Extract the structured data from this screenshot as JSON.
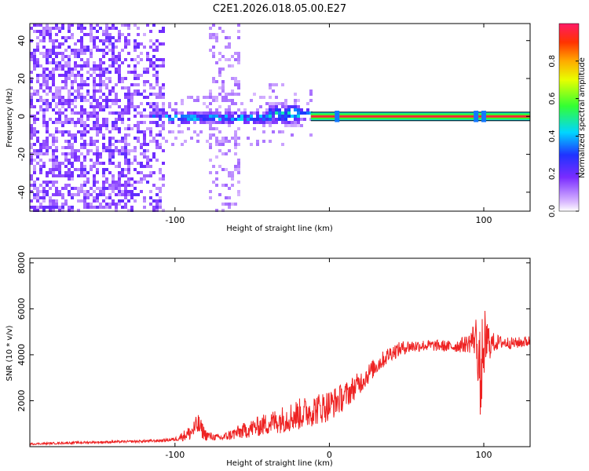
{
  "title": "C2E1.2026.018.05.00.E27",
  "chart_data": [
    {
      "type": "heatmap",
      "name": "spectrogram",
      "xlabel": "Height of straight line (km)",
      "ylabel": "Frequency (Hz)",
      "xlim": [
        -194,
        130
      ],
      "ylim": [
        -50,
        49
      ],
      "xticks": [
        -100,
        0,
        100
      ],
      "xtick_labels": [
        "-100",
        "",
        "100"
      ],
      "yticks": [
        -40,
        -20,
        0,
        20,
        40
      ],
      "ytick_labels": [
        "-40",
        "-20",
        "0",
        "20",
        "40"
      ],
      "colorbar": {
        "label": "Normalized spectral amplitude",
        "range": [
          0,
          1
        ],
        "ticks": [
          0.0,
          0.2,
          0.4,
          0.6,
          0.8
        ],
        "tick_labels": [
          "0.0",
          "0.2",
          "0.4",
          "0.6",
          "0.8"
        ]
      },
      "features": {
        "noise_region_km": [
          -194,
          -108
        ],
        "noise_patch_km": [
          -80,
          -58
        ],
        "broadband_region_km": [
          -118,
          -12
        ],
        "tone_frequency_hz": 0,
        "tone_band_hz": [
          -1,
          1
        ],
        "tone_start_km": -12,
        "tone_end_km": 130,
        "spur_km": [
          5,
          95,
          100
        ]
      }
    },
    {
      "type": "line",
      "name": "snr",
      "xlabel": "Height of straight line (km)",
      "ylabel": "SNR (10 * v/v)",
      "xlim": [
        -194,
        130
      ],
      "ylim": [
        0,
        8200
      ],
      "xticks": [
        -100,
        0,
        100
      ],
      "xtick_labels": [
        "-100",
        "0",
        "100"
      ],
      "yticks": [
        2000,
        4000,
        6000,
        8000
      ],
      "ytick_labels": [
        "2000",
        "4000",
        "6000",
        "8000"
      ],
      "series": [
        {
          "name": "SNR",
          "color": "#ee2222",
          "x": [
            -194,
            -160,
            -130,
            -110,
            -100,
            -90,
            -85,
            -80,
            -75,
            -70,
            -60,
            -50,
            -40,
            -30,
            -20,
            -10,
            0,
            10,
            20,
            30,
            40,
            50,
            60,
            70,
            80,
            90,
            95,
            98,
            100,
            105,
            110,
            120,
            130
          ],
          "y": [
            120,
            180,
            220,
            260,
            320,
            600,
            950,
            500,
            420,
            380,
            600,
            800,
            1000,
            1200,
            1400,
            1600,
            1800,
            2200,
            2800,
            3500,
            4100,
            4350,
            4400,
            4400,
            4350,
            4500,
            4800,
            3000,
            4600,
            4500,
            4550,
            4500,
            4600
          ],
          "noise": [
            40,
            50,
            50,
            60,
            80,
            350,
            500,
            250,
            150,
            150,
            300,
            400,
            500,
            600,
            700,
            700,
            700,
            600,
            500,
            400,
            350,
            300,
            250,
            250,
            250,
            400,
            900,
            2000,
            1600,
            500,
            300,
            250,
            250
          ]
        }
      ]
    }
  ]
}
